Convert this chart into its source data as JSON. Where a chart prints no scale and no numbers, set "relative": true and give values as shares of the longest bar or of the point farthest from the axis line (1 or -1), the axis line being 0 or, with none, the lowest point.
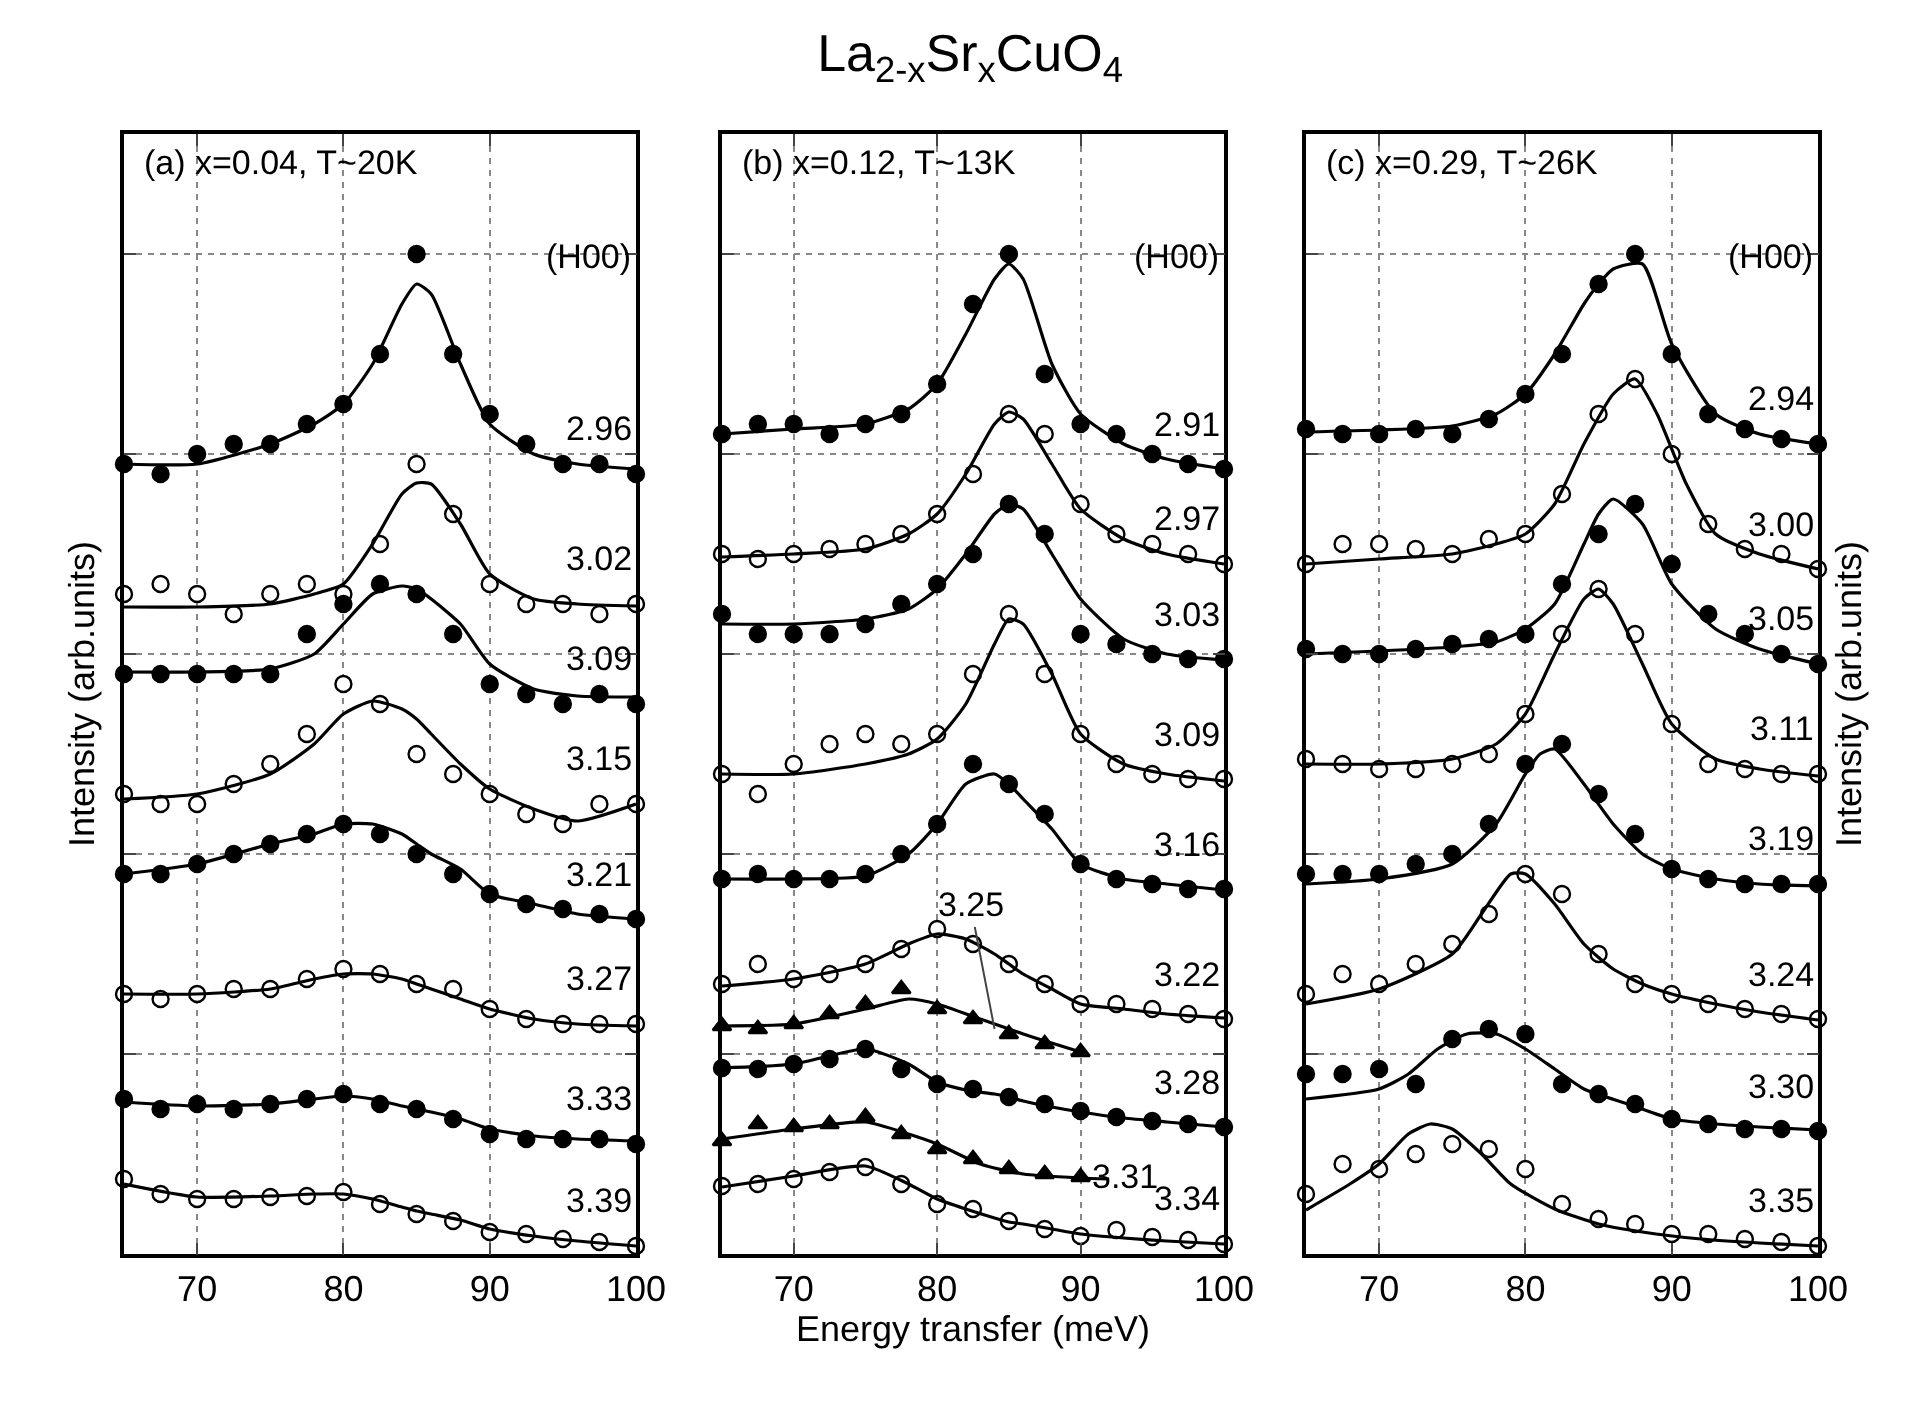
{
  "chart_data": [
    {
      "type": "scatter",
      "subtitle": "(a) x=0.04, T~20K",
      "ylabel": "Intensity (arb.units)",
      "relative": true,
      "xlim": [
        65,
        100
      ],
      "xticks": [
        70,
        80,
        90,
        100
      ],
      "grid": true,
      "tick_labels": "x",
      "line_style": "solid",
      "annotations": [
        "(H00)"
      ],
      "x": [
        65,
        67.5,
        70,
        72.5,
        75,
        77.5,
        80,
        82.5,
        85,
        87.5,
        90,
        92.5,
        95,
        97.5,
        100
      ],
      "series": [
        {
          "name": "2.96",
          "color": "#000000",
          "marker": "circle",
          "values": [
            0.79,
            0.78,
            0.8,
            0.81,
            0.81,
            0.83,
            0.85,
            0.9,
            1.0,
            0.9,
            0.84,
            0.81,
            0.79,
            0.79,
            0.78
          ]
        },
        {
          "type": "line",
          "color": "#000000",
          "marker": "none",
          "x": [
            65,
            70,
            75,
            78,
            80,
            82,
            84,
            85,
            86,
            88,
            90,
            93,
            96,
            100
          ],
          "values": [
            0.79,
            0.79,
            0.81,
            0.83,
            0.85,
            0.89,
            0.95,
            0.97,
            0.96,
            0.89,
            0.83,
            0.8,
            0.79,
            0.785
          ]
        },
        {
          "name": "3.02",
          "color": "#ffffff",
          "marker": "circle",
          "values": [
            0.66,
            0.67,
            0.66,
            0.64,
            0.66,
            0.67,
            0.66,
            0.71,
            0.79,
            0.74,
            0.67,
            0.65,
            0.65,
            0.64,
            0.65
          ]
        },
        {
          "type": "line",
          "color": "#000000",
          "marker": "none",
          "x": [
            65,
            70,
            75,
            78,
            80,
            82,
            84,
            85,
            86,
            88,
            90,
            93,
            96,
            100
          ],
          "values": [
            0.647,
            0.647,
            0.65,
            0.66,
            0.67,
            0.71,
            0.76,
            0.771,
            0.77,
            0.73,
            0.68,
            0.655,
            0.65,
            0.648
          ]
        },
        {
          "name": "3.09",
          "color": "#000000",
          "marker": "circle",
          "values": [
            0.58,
            0.58,
            0.58,
            0.58,
            0.58,
            0.62,
            0.65,
            0.67,
            0.66,
            0.62,
            0.57,
            0.56,
            0.55,
            0.56,
            0.55
          ]
        },
        {
          "type": "line",
          "color": "#000000",
          "marker": "none",
          "x": [
            65,
            70,
            75,
            78,
            80,
            82,
            84,
            85,
            86,
            88,
            90,
            93,
            96,
            100
          ],
          "values": [
            0.582,
            0.582,
            0.585,
            0.6,
            0.63,
            0.66,
            0.668,
            0.665,
            0.655,
            0.63,
            0.59,
            0.565,
            0.558,
            0.557
          ]
        },
        {
          "name": "3.15",
          "color": "#ffffff",
          "marker": "circle",
          "values": [
            0.46,
            0.45,
            0.45,
            0.47,
            0.49,
            0.52,
            0.57,
            0.55,
            0.5,
            0.48,
            0.46,
            0.44,
            0.43,
            0.45,
            0.45
          ]
        },
        {
          "type": "line",
          "color": "#000000",
          "marker": "none",
          "x": [
            65,
            70,
            75,
            78,
            80,
            82,
            84,
            85,
            86,
            88,
            90,
            93,
            96,
            100
          ],
          "values": [
            0.455,
            0.46,
            0.48,
            0.51,
            0.54,
            0.553,
            0.545,
            0.535,
            0.52,
            0.49,
            0.465,
            0.445,
            0.433,
            0.45
          ]
        },
        {
          "name": "3.21",
          "color": "#000000",
          "marker": "circle",
          "values": [
            0.38,
            0.38,
            0.39,
            0.4,
            0.41,
            0.42,
            0.43,
            0.42,
            0.4,
            0.38,
            0.36,
            0.35,
            0.345,
            0.34,
            0.335
          ]
        },
        {
          "type": "line",
          "color": "#000000",
          "marker": "none",
          "x": [
            65,
            70,
            75,
            78,
            80,
            82,
            84,
            85,
            86,
            88,
            90,
            93,
            96,
            100
          ],
          "values": [
            0.38,
            0.39,
            0.41,
            0.42,
            0.43,
            0.43,
            0.42,
            0.41,
            0.4,
            0.385,
            0.36,
            0.35,
            0.34,
            0.335
          ]
        },
        {
          "name": "3.27",
          "color": "#ffffff",
          "marker": "circle",
          "values": [
            0.26,
            0.255,
            0.26,
            0.265,
            0.265,
            0.275,
            0.285,
            0.28,
            0.27,
            0.265,
            0.245,
            0.235,
            0.23,
            0.23,
            0.23
          ]
        },
        {
          "type": "line",
          "color": "#000000",
          "marker": "none",
          "x": [
            65,
            70,
            75,
            78,
            80,
            82,
            84,
            85,
            86,
            88,
            90,
            93,
            96,
            100
          ],
          "values": [
            0.26,
            0.26,
            0.265,
            0.275,
            0.28,
            0.28,
            0.275,
            0.27,
            0.265,
            0.255,
            0.245,
            0.235,
            0.23,
            0.228
          ]
        },
        {
          "name": "3.33",
          "color": "#000000",
          "marker": "circle",
          "values": [
            0.155,
            0.145,
            0.15,
            0.145,
            0.15,
            0.155,
            0.16,
            0.15,
            0.145,
            0.135,
            0.12,
            0.115,
            0.115,
            0.115,
            0.11
          ]
        },
        {
          "type": "line",
          "color": "#000000",
          "marker": "none",
          "x": [
            65,
            70,
            75,
            78,
            80,
            82,
            84,
            85,
            86,
            88,
            90,
            93,
            96,
            100
          ],
          "values": [
            0.152,
            0.148,
            0.15,
            0.155,
            0.158,
            0.155,
            0.148,
            0.145,
            0.142,
            0.135,
            0.125,
            0.118,
            0.115,
            0.113
          ]
        },
        {
          "name": "3.39",
          "color": "#ffffff",
          "marker": "circle",
          "values": [
            0.075,
            0.06,
            0.055,
            0.055,
            0.057,
            0.058,
            0.062,
            0.05,
            0.04,
            0.033,
            0.022,
            0.02,
            0.015,
            0.012,
            0.008
          ]
        },
        {
          "type": "line",
          "color": "#000000",
          "marker": "none",
          "x": [
            65,
            70,
            75,
            78,
            80,
            82,
            84,
            85,
            86,
            88,
            90,
            93,
            96,
            100
          ],
          "values": [
            0.07,
            0.057,
            0.058,
            0.06,
            0.06,
            0.055,
            0.047,
            0.043,
            0.04,
            0.034,
            0.025,
            0.018,
            0.013,
            0.008
          ]
        }
      ]
    },
    {
      "type": "scatter",
      "title": "La$_{2-x}$Sr$_{x}$CuO$_{4}$",
      "subtitle": "(b) x=0.12, T~13K",
      "xlabel": "Energy transfer (meV)",
      "relative": true,
      "xlim": [
        65,
        100
      ],
      "xticks": [
        70,
        80,
        90,
        100
      ],
      "grid": true,
      "tick_labels": "x",
      "line_style": "solid",
      "annotations": [
        "(H00)",
        {
          "text": "3.25",
          "x": 84,
          "y": 0.225
        }
      ],
      "x": [
        65,
        67.5,
        70,
        72.5,
        75,
        77.5,
        80,
        82.5,
        85,
        87.5,
        90,
        92.5,
        95,
        97.5,
        100
      ],
      "series": [
        {
          "name": "2.91",
          "color": "#000000",
          "marker": "circle",
          "values": [
            0.82,
            0.83,
            0.83,
            0.82,
            0.83,
            0.84,
            0.87,
            0.95,
            1.0,
            0.88,
            0.83,
            0.82,
            0.8,
            0.79,
            0.785
          ]
        },
        {
          "type": "line",
          "color": "#000000",
          "marker": "none",
          "x": [
            65,
            70,
            75,
            78,
            80,
            82,
            84,
            85,
            86,
            88,
            90,
            93,
            96,
            100
          ],
          "values": [
            0.82,
            0.825,
            0.83,
            0.845,
            0.87,
            0.92,
            0.975,
            0.99,
            0.975,
            0.89,
            0.84,
            0.81,
            0.795,
            0.785
          ]
        },
        {
          "name": "2.97",
          "color": "#ffffff",
          "marker": "circle",
          "values": [
            0.7,
            0.695,
            0.7,
            0.705,
            0.71,
            0.72,
            0.74,
            0.78,
            0.84,
            0.82,
            0.75,
            0.72,
            0.71,
            0.7,
            0.69
          ]
        },
        {
          "type": "line",
          "color": "#000000",
          "marker": "none",
          "x": [
            65,
            70,
            75,
            78,
            80,
            82,
            84,
            85,
            86,
            88,
            90,
            93,
            96,
            100
          ],
          "values": [
            0.697,
            0.7,
            0.705,
            0.72,
            0.74,
            0.78,
            0.83,
            0.842,
            0.835,
            0.79,
            0.745,
            0.715,
            0.7,
            0.69
          ]
        },
        {
          "name": "3.03",
          "color": "#000000",
          "marker": "circle",
          "values": [
            0.64,
            0.62,
            0.62,
            0.62,
            0.63,
            0.65,
            0.67,
            0.7,
            0.75,
            0.72,
            0.62,
            0.61,
            0.6,
            0.595,
            0.595
          ]
        },
        {
          "type": "line",
          "color": "#000000",
          "marker": "none",
          "x": [
            65,
            70,
            75,
            78,
            80,
            82,
            84,
            85,
            86,
            88,
            90,
            93,
            96,
            100
          ],
          "values": [
            0.63,
            0.63,
            0.635,
            0.645,
            0.665,
            0.7,
            0.74,
            0.75,
            0.745,
            0.7,
            0.655,
            0.615,
            0.6,
            0.594
          ]
        },
        {
          "name": "3.09",
          "color": "#ffffff",
          "marker": "circle",
          "values": [
            0.48,
            0.46,
            0.49,
            0.51,
            0.52,
            0.51,
            0.52,
            0.58,
            0.64,
            0.58,
            0.52,
            0.49,
            0.48,
            0.475,
            0.475
          ]
        },
        {
          "type": "line",
          "color": "#000000",
          "marker": "none",
          "x": [
            65,
            70,
            75,
            78,
            80,
            82,
            84,
            85,
            86,
            88,
            90,
            93,
            96,
            100
          ],
          "values": [
            0.48,
            0.48,
            0.49,
            0.5,
            0.515,
            0.55,
            0.61,
            0.635,
            0.63,
            0.58,
            0.52,
            0.49,
            0.48,
            0.473
          ]
        },
        {
          "name": "3.16",
          "color": "#000000",
          "marker": "circle",
          "values": [
            0.375,
            0.38,
            0.375,
            0.375,
            0.38,
            0.4,
            0.43,
            0.49,
            0.47,
            0.44,
            0.39,
            0.375,
            0.37,
            0.365,
            0.365
          ]
        },
        {
          "type": "line",
          "color": "#000000",
          "marker": "none",
          "x": [
            65,
            70,
            75,
            78,
            80,
            82,
            84,
            85,
            86,
            88,
            90,
            93,
            96,
            100
          ],
          "values": [
            0.375,
            0.375,
            0.378,
            0.4,
            0.43,
            0.47,
            0.48,
            0.47,
            0.455,
            0.425,
            0.39,
            0.375,
            0.37,
            0.364
          ]
        },
        {
          "name": "3.22",
          "color": "#ffffff",
          "marker": "circle",
          "values": [
            0.27,
            0.29,
            0.275,
            0.28,
            0.29,
            0.305,
            0.325,
            0.31,
            0.29,
            0.27,
            0.25,
            0.25,
            0.245,
            0.24,
            0.235
          ]
        },
        {
          "type": "line",
          "color": "#000000",
          "marker": "none",
          "x": [
            65,
            70,
            75,
            78,
            80,
            82,
            84,
            85,
            86,
            88,
            90,
            93,
            96,
            100
          ],
          "values": [
            0.268,
            0.275,
            0.29,
            0.31,
            0.32,
            0.315,
            0.3,
            0.29,
            0.28,
            0.265,
            0.25,
            0.245,
            0.24,
            0.236
          ]
        },
        {
          "color": "#000000",
          "marker": "triangle",
          "x": [
            65,
            67.5,
            70,
            72.5,
            75,
            77.5,
            80,
            82.5,
            85,
            87.5,
            90
          ],
          "values": [
            0.228,
            0.225,
            0.23,
            0.24,
            0.25,
            0.265,
            0.245,
            0.235,
            0.22,
            0.21,
            0.202
          ]
        },
        {
          "type": "line",
          "color": "#000000",
          "marker": "none",
          "x": [
            65,
            70,
            75,
            78,
            80,
            83,
            86,
            90
          ],
          "values": [
            0.228,
            0.23,
            0.245,
            0.255,
            0.25,
            0.235,
            0.22,
            0.202
          ]
        },
        {
          "name": "3.28",
          "color": "#000000",
          "marker": "circle",
          "values": [
            0.186,
            0.185,
            0.19,
            0.195,
            0.205,
            0.185,
            0.17,
            0.165,
            0.157,
            0.15,
            0.143,
            0.137,
            0.133,
            0.13,
            0.127
          ]
        },
        {
          "type": "line",
          "color": "#000000",
          "marker": "none",
          "x": [
            65,
            70,
            75,
            78,
            80,
            82,
            84,
            85,
            86,
            88,
            90,
            93,
            96,
            100
          ],
          "values": [
            0.186,
            0.19,
            0.205,
            0.19,
            0.172,
            0.164,
            0.16,
            0.157,
            0.153,
            0.147,
            0.142,
            0.136,
            0.132,
            0.127
          ]
        },
        {
          "name": "3.31",
          "color": "#000000",
          "marker": "triangle",
          "x": [
            65,
            67.5,
            70,
            72.5,
            75,
            77.5,
            80,
            82.5,
            85,
            87.5,
            90
          ],
          "values": [
            0.113,
            0.13,
            0.127,
            0.13,
            0.137,
            0.12,
            0.105,
            0.095,
            0.085,
            0.08,
            0.077
          ]
        },
        {
          "type": "line",
          "color": "#000000",
          "marker": "none",
          "x": [
            65,
            70,
            75,
            78,
            80,
            83,
            86,
            90,
            92
          ],
          "values": [
            0.115,
            0.125,
            0.132,
            0.12,
            0.11,
            0.09,
            0.08,
            0.076,
            0.075
          ]
        },
        {
          "name": "3.34",
          "color": "#ffffff",
          "marker": "circle",
          "values": [
            0.068,
            0.07,
            0.075,
            0.082,
            0.087,
            0.07,
            0.05,
            0.045,
            0.033,
            0.025,
            0.018,
            0.024,
            0.017,
            0.014,
            0.01
          ]
        },
        {
          "type": "line",
          "color": "#000000",
          "marker": "none",
          "x": [
            65,
            70,
            75,
            78,
            80,
            82,
            84,
            85,
            86,
            88,
            90,
            93,
            96,
            100
          ],
          "values": [
            0.067,
            0.078,
            0.088,
            0.07,
            0.055,
            0.045,
            0.036,
            0.032,
            0.03,
            0.025,
            0.02,
            0.016,
            0.013,
            0.01
          ]
        }
      ]
    },
    {
      "type": "scatter",
      "subtitle": "(c) x=0.29, T~26K",
      "ylabel": "Intensity (arb.units)",
      "relative": true,
      "xlim": [
        65,
        100
      ],
      "xticks": [
        70,
        80,
        90,
        100
      ],
      "grid": true,
      "tick_labels": "x",
      "line_style": "solid",
      "annotations": [
        "(H00)"
      ],
      "x": [
        65,
        67.5,
        70,
        72.5,
        75,
        77.5,
        80,
        82.5,
        85,
        87.5,
        90,
        92.5,
        95,
        97.5,
        100
      ],
      "series": [
        {
          "name": "2.94",
          "color": "#000000",
          "marker": "circle",
          "values": [
            0.825,
            0.82,
            0.82,
            0.825,
            0.82,
            0.835,
            0.86,
            0.9,
            0.97,
            1.0,
            0.9,
            0.84,
            0.825,
            0.815,
            0.81
          ]
        },
        {
          "type": "line",
          "color": "#000000",
          "marker": "none",
          "x": [
            65,
            70,
            75,
            78,
            80,
            82,
            84,
            85,
            86,
            88,
            90,
            93,
            96,
            100
          ],
          "values": [
            0.822,
            0.824,
            0.828,
            0.84,
            0.86,
            0.9,
            0.95,
            0.97,
            0.985,
            0.99,
            0.91,
            0.84,
            0.82,
            0.81
          ]
        },
        {
          "name": "3.00",
          "color": "#ffffff",
          "marker": "circle",
          "values": [
            0.69,
            0.71,
            0.71,
            0.705,
            0.7,
            0.715,
            0.72,
            0.76,
            0.84,
            0.875,
            0.8,
            0.73,
            0.705,
            0.7,
            0.685
          ]
        },
        {
          "type": "line",
          "color": "#000000",
          "marker": "none",
          "x": [
            65,
            70,
            75,
            78,
            80,
            82,
            84,
            86,
            87.5,
            89,
            91,
            93,
            96,
            100
          ],
          "values": [
            0.69,
            0.695,
            0.7,
            0.71,
            0.72,
            0.75,
            0.81,
            0.86,
            0.875,
            0.84,
            0.77,
            0.72,
            0.7,
            0.685
          ]
        },
        {
          "name": "3.05",
          "color": "#000000",
          "marker": "circle",
          "values": [
            0.605,
            0.6,
            0.6,
            0.605,
            0.61,
            0.615,
            0.62,
            0.67,
            0.72,
            0.75,
            0.69,
            0.64,
            0.62,
            0.6,
            0.59
          ]
        },
        {
          "type": "line",
          "color": "#000000",
          "marker": "none",
          "x": [
            65,
            70,
            75,
            78,
            80,
            82,
            84,
            85,
            86,
            88,
            90,
            93,
            96,
            100
          ],
          "values": [
            0.6,
            0.603,
            0.607,
            0.612,
            0.625,
            0.65,
            0.71,
            0.74,
            0.755,
            0.73,
            0.67,
            0.625,
            0.605,
            0.59
          ]
        },
        {
          "name": "3.11",
          "color": "#ffffff",
          "marker": "circle",
          "values": [
            0.495,
            0.49,
            0.485,
            0.485,
            0.49,
            0.5,
            0.54,
            0.62,
            0.665,
            0.62,
            0.53,
            0.49,
            0.485,
            0.48,
            0.48
          ]
        },
        {
          "type": "line",
          "color": "#000000",
          "marker": "none",
          "x": [
            65,
            70,
            75,
            78,
            80,
            82,
            84,
            85,
            86,
            88,
            90,
            93,
            96,
            100
          ],
          "values": [
            0.49,
            0.49,
            0.495,
            0.51,
            0.54,
            0.6,
            0.655,
            0.665,
            0.65,
            0.59,
            0.53,
            0.495,
            0.485,
            0.478
          ]
        },
        {
          "name": "3.19",
          "color": "#000000",
          "marker": "circle",
          "values": [
            0.38,
            0.38,
            0.38,
            0.39,
            0.4,
            0.43,
            0.49,
            0.51,
            0.46,
            0.42,
            0.385,
            0.375,
            0.37,
            0.37,
            0.37
          ]
        },
        {
          "type": "line",
          "color": "#000000",
          "marker": "none",
          "x": [
            65,
            70,
            75,
            78,
            80,
            81,
            82,
            84,
            86,
            88,
            90,
            93,
            96,
            100
          ],
          "values": [
            0.37,
            0.375,
            0.39,
            0.43,
            0.48,
            0.5,
            0.505,
            0.47,
            0.43,
            0.4,
            0.385,
            0.375,
            0.37,
            0.368
          ]
        },
        {
          "name": "3.24",
          "color": "#ffffff",
          "marker": "circle",
          "values": [
            0.26,
            0.28,
            0.27,
            0.29,
            0.31,
            0.34,
            0.38,
            0.36,
            0.3,
            0.27,
            0.26,
            0.25,
            0.245,
            0.24,
            0.235
          ]
        },
        {
          "type": "line",
          "color": "#000000",
          "marker": "none",
          "x": [
            65,
            70,
            75,
            77,
            79,
            80,
            82,
            84,
            86,
            88,
            90,
            93,
            96,
            100
          ],
          "values": [
            0.25,
            0.265,
            0.3,
            0.34,
            0.38,
            0.38,
            0.35,
            0.31,
            0.285,
            0.27,
            0.26,
            0.25,
            0.242,
            0.234
          ]
        },
        {
          "name": "3.30",
          "color": "#000000",
          "marker": "circle",
          "values": [
            0.18,
            0.18,
            0.185,
            0.17,
            0.215,
            0.225,
            0.22,
            0.17,
            0.16,
            0.15,
            0.135,
            0.13,
            0.125,
            0.125,
            0.123
          ]
        },
        {
          "type": "line",
          "color": "#000000",
          "marker": "none",
          "x": [
            65,
            70,
            72,
            74,
            76,
            78,
            80,
            82,
            84,
            87,
            90,
            93,
            96,
            100
          ],
          "values": [
            0.155,
            0.165,
            0.18,
            0.205,
            0.22,
            0.22,
            0.205,
            0.185,
            0.165,
            0.15,
            0.135,
            0.13,
            0.127,
            0.124
          ]
        },
        {
          "name": "3.35",
          "color": "#ffffff",
          "marker": "circle",
          "values": [
            0.06,
            0.09,
            0.085,
            0.1,
            0.11,
            0.105,
            0.085,
            0.05,
            0.035,
            0.03,
            0.02,
            0.02,
            0.015,
            0.012,
            0.008
          ]
        },
        {
          "type": "line",
          "color": "#000000",
          "marker": "none",
          "x": [
            65,
            68,
            70,
            72,
            73.5,
            75,
            77,
            79,
            82,
            85,
            88,
            92,
            96,
            100
          ],
          "values": [
            0.044,
            0.07,
            0.09,
            0.12,
            0.13,
            0.125,
            0.1,
            0.07,
            0.045,
            0.03,
            0.022,
            0.015,
            0.011,
            0.008
          ]
        }
      ]
    }
  ]
}
